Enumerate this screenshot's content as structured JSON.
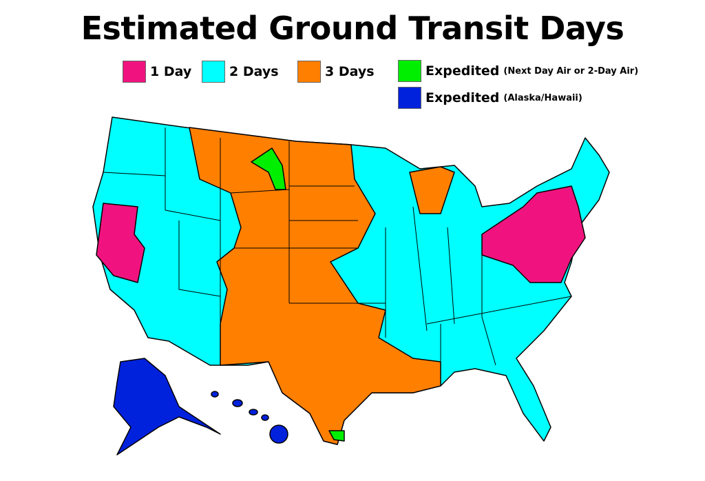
{
  "title": "Estimated Ground Transit Days",
  "legend": [
    {
      "label": "1 Day",
      "sub": "",
      "color": "#f0137f"
    },
    {
      "label": "2 Days",
      "sub": "",
      "color": "#00ffff"
    },
    {
      "label": "3 Days",
      "sub": "",
      "color": "#ff7f00"
    },
    {
      "label": "Expedited",
      "sub": "(Next Day Air or 2-Day Air)",
      "color": "#00ee00"
    },
    {
      "label": "Expedited",
      "sub": "(Alaska/Hawaii)",
      "color": "#0022dd"
    }
  ]
}
